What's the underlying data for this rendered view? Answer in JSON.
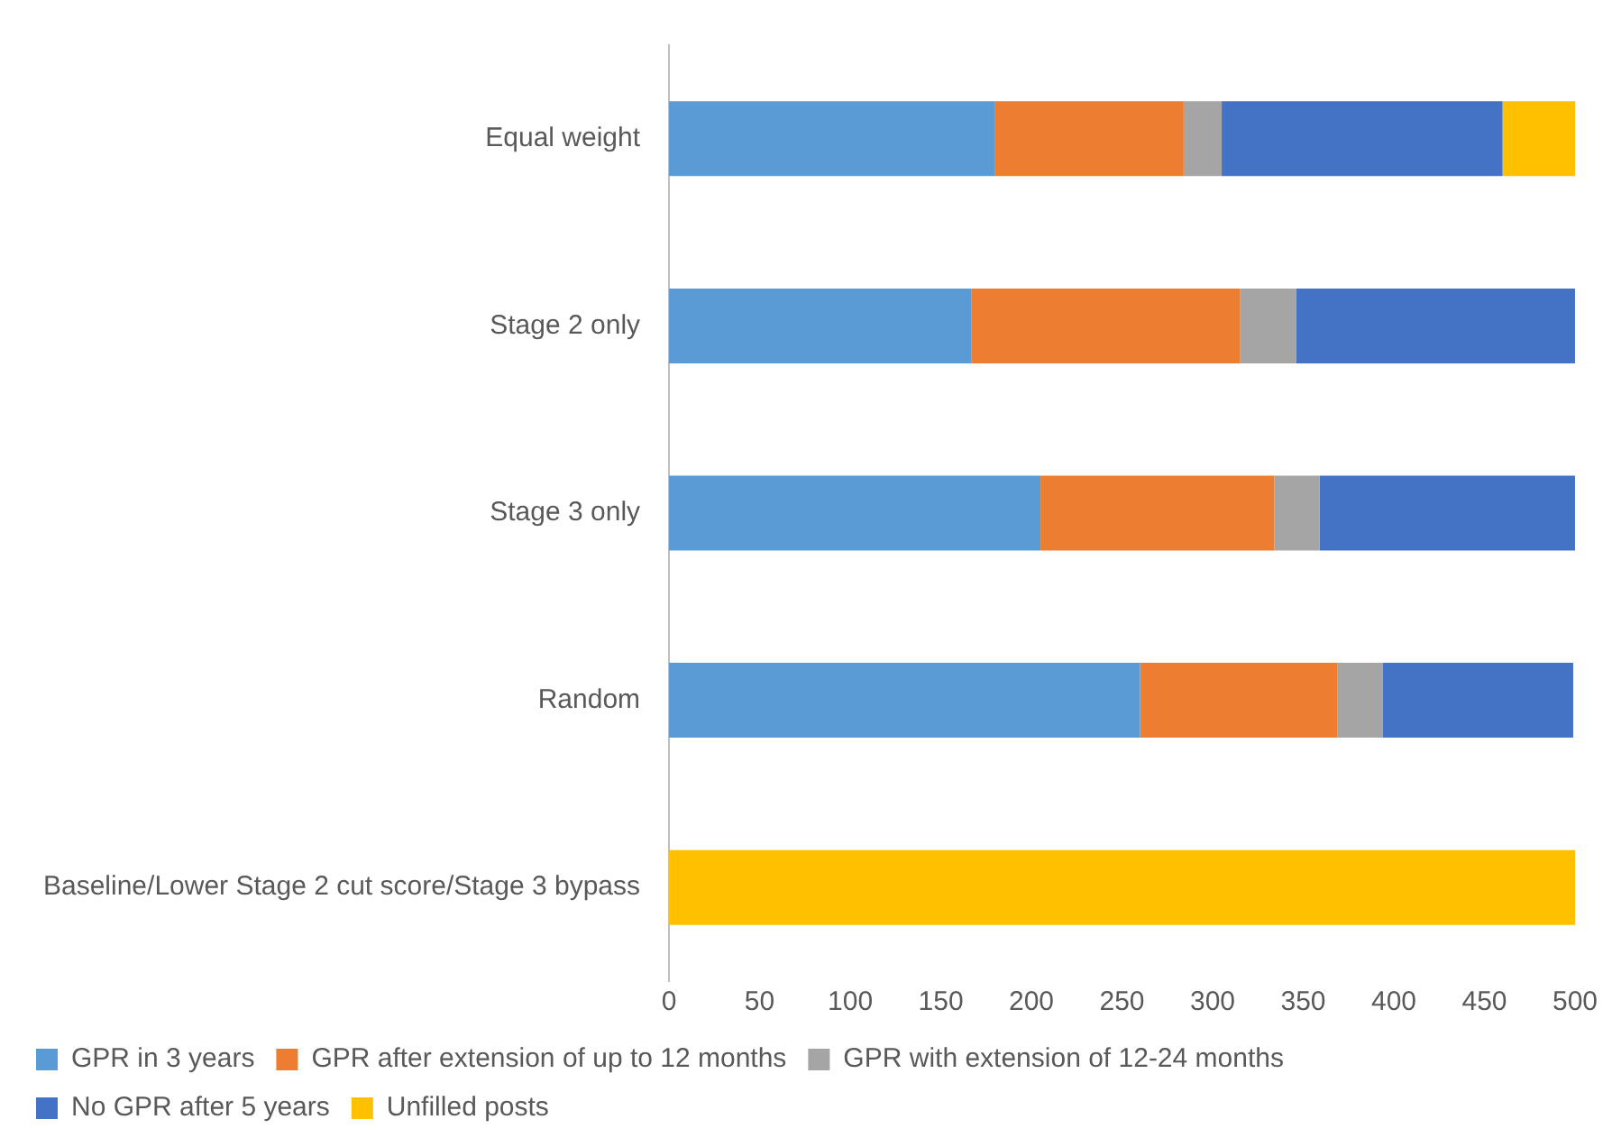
{
  "chart_data": {
    "type": "bar",
    "orientation": "horizontal",
    "stacked": true,
    "grid": false,
    "legend": "bottom",
    "categories": [
      "Equal weight",
      "Stage 2 only",
      "Stage 3 only",
      "Random",
      "Baseline/Lower Stage 2 cut score/Stage 3 bypass"
    ],
    "xlim": [
      0,
      500
    ],
    "xticks": [
      0,
      50,
      100,
      150,
      200,
      250,
      300,
      350,
      400,
      450,
      500
    ],
    "series": [
      {
        "name": "GPR in 3 years",
        "color": "#5b9bd5",
        "values": [
          180,
          167,
          205,
          260,
          0
        ]
      },
      {
        "name": "GPR after extension of up to 12 months",
        "color": "#ed7d31",
        "values": [
          104,
          148,
          129,
          109,
          0
        ]
      },
      {
        "name": "GPR with extension of 12-24 months",
        "color": "#a5a5a5",
        "values": [
          21,
          31,
          25,
          25,
          0
        ]
      },
      {
        "name": "No GPR after 5 years",
        "color": "#4472c4",
        "values": [
          155,
          154,
          141,
          105,
          0
        ]
      },
      {
        "name": "Unfilled posts",
        "color": "#ffc000",
        "values": [
          40,
          0,
          0,
          0,
          500
        ]
      }
    ]
  }
}
